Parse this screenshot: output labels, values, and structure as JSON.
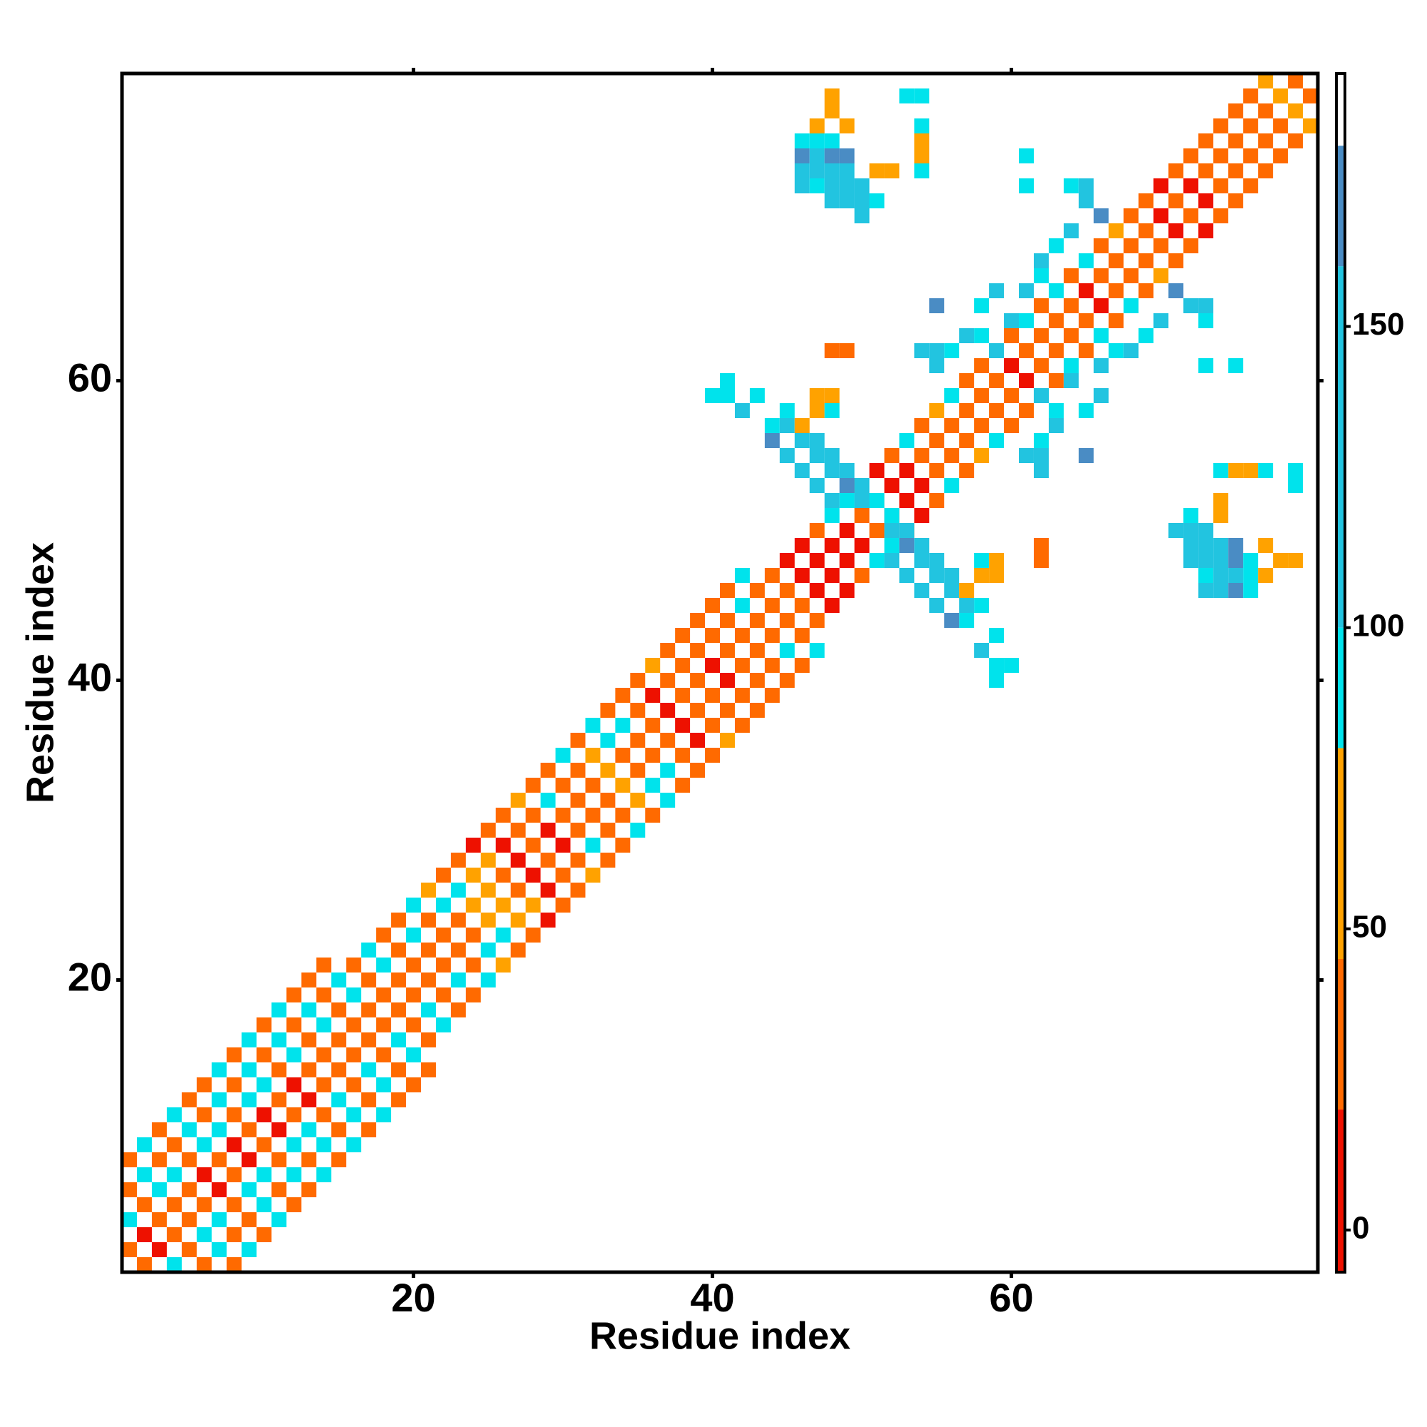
{
  "chart_data": {
    "type": "heatmap",
    "x_label": "Residue index",
    "y_label": "Residue index",
    "xlim": [
      0.5,
      80.5
    ],
    "ylim": [
      0.5,
      80.5
    ],
    "xticks": [
      20,
      40,
      60
    ],
    "yticks": [
      20,
      40,
      60
    ],
    "symmetric": true,
    "colorbar": {
      "lim": [
        -7,
        192
      ],
      "ticks": [
        0,
        50,
        100,
        150
      ],
      "bands": [
        {
          "to": 20,
          "color": "#ee1100"
        },
        {
          "to": 45,
          "color": "#ff6a00"
        },
        {
          "to": 80,
          "color": "#ffa200"
        },
        {
          "to": 100,
          "color": "#00e3ec"
        },
        {
          "to": 160,
          "color": "#22c4e0"
        },
        {
          "to": 180,
          "color": "#4a8cc4"
        }
      ]
    },
    "cells": [
      [
        1,
        2,
        35
      ],
      [
        2,
        3,
        10
      ],
      [
        3,
        4,
        35
      ],
      [
        4,
        5,
        35
      ],
      [
        5,
        6,
        35
      ],
      [
        6,
        7,
        10
      ],
      [
        7,
        8,
        35
      ],
      [
        8,
        9,
        10
      ],
      [
        9,
        10,
        35
      ],
      [
        10,
        11,
        10
      ],
      [
        11,
        12,
        35
      ],
      [
        12,
        13,
        10
      ],
      [
        13,
        14,
        35
      ],
      [
        14,
        15,
        35
      ],
      [
        15,
        16,
        35
      ],
      [
        16,
        17,
        35
      ],
      [
        17,
        18,
        35
      ],
      [
        18,
        19,
        35
      ],
      [
        19,
        20,
        35
      ],
      [
        20,
        21,
        35
      ],
      [
        21,
        22,
        35
      ],
      [
        22,
        23,
        35
      ],
      [
        23,
        24,
        35
      ],
      [
        24,
        25,
        60
      ],
      [
        25,
        26,
        60
      ],
      [
        26,
        27,
        35
      ],
      [
        27,
        28,
        10
      ],
      [
        28,
        29,
        35
      ],
      [
        29,
        30,
        10
      ],
      [
        30,
        31,
        35
      ],
      [
        31,
        32,
        35
      ],
      [
        32,
        33,
        35
      ],
      [
        33,
        34,
        60
      ],
      [
        34,
        35,
        35
      ],
      [
        35,
        36,
        35
      ],
      [
        36,
        37,
        35
      ],
      [
        37,
        38,
        10
      ],
      [
        38,
        39,
        35
      ],
      [
        39,
        40,
        35
      ],
      [
        40,
        41,
        10
      ],
      [
        41,
        42,
        35
      ],
      [
        42,
        43,
        35
      ],
      [
        43,
        44,
        35
      ],
      [
        44,
        45,
        35
      ],
      [
        45,
        46,
        35
      ],
      [
        46,
        47,
        10
      ],
      [
        47,
        48,
        10
      ],
      [
        48,
        49,
        10
      ],
      [
        49,
        50,
        10
      ],
      [
        50,
        51,
        35
      ],
      [
        51,
        52,
        10
      ],
      [
        52,
        53,
        10
      ],
      [
        53,
        54,
        10
      ],
      [
        54,
        55,
        35
      ],
      [
        55,
        56,
        35
      ],
      [
        56,
        57,
        35
      ],
      [
        57,
        58,
        35
      ],
      [
        58,
        59,
        35
      ],
      [
        59,
        60,
        35
      ],
      [
        60,
        61,
        10
      ],
      [
        61,
        62,
        35
      ],
      [
        62,
        63,
        35
      ],
      [
        63,
        64,
        35
      ],
      [
        64,
        65,
        35
      ],
      [
        65,
        66,
        10
      ],
      [
        66,
        67,
        35
      ],
      [
        67,
        68,
        35
      ],
      [
        68,
        69,
        35
      ],
      [
        69,
        70,
        35
      ],
      [
        70,
        71,
        10
      ],
      [
        71,
        72,
        35
      ],
      [
        72,
        73,
        10
      ],
      [
        73,
        74,
        35
      ],
      [
        74,
        75,
        35
      ],
      [
        75,
        76,
        35
      ],
      [
        76,
        77,
        35
      ],
      [
        77,
        78,
        35
      ],
      [
        78,
        79,
        60
      ],
      [
        79,
        80,
        35
      ],
      [
        1,
        4,
        90
      ],
      [
        2,
        5,
        35
      ],
      [
        3,
        6,
        90
      ],
      [
        4,
        7,
        90
      ],
      [
        5,
        8,
        35
      ],
      [
        6,
        9,
        90
      ],
      [
        7,
        10,
        90
      ],
      [
        8,
        11,
        35
      ],
      [
        9,
        12,
        90
      ],
      [
        10,
        13,
        90
      ],
      [
        11,
        14,
        35
      ],
      [
        12,
        15,
        90
      ],
      [
        13,
        16,
        35
      ],
      [
        14,
        17,
        90
      ],
      [
        15,
        18,
        35
      ],
      [
        16,
        19,
        90
      ],
      [
        17,
        20,
        35
      ],
      [
        18,
        21,
        90
      ],
      [
        19,
        22,
        35
      ],
      [
        20,
        23,
        90
      ],
      [
        21,
        24,
        35
      ],
      [
        22,
        25,
        90
      ],
      [
        23,
        26,
        90
      ],
      [
        24,
        27,
        60
      ],
      [
        25,
        28,
        60
      ],
      [
        26,
        29,
        10
      ],
      [
        27,
        30,
        35
      ],
      [
        28,
        31,
        35
      ],
      [
        29,
        32,
        90
      ],
      [
        30,
        33,
        35
      ],
      [
        31,
        34,
        35
      ],
      [
        32,
        35,
        60
      ],
      [
        33,
        36,
        90
      ],
      [
        34,
        37,
        90
      ],
      [
        35,
        38,
        35
      ],
      [
        36,
        39,
        10
      ],
      [
        37,
        40,
        35
      ],
      [
        38,
        41,
        35
      ],
      [
        39,
        42,
        35
      ],
      [
        40,
        43,
        35
      ],
      [
        41,
        44,
        35
      ],
      [
        42,
        45,
        90
      ],
      [
        43,
        46,
        35
      ],
      [
        44,
        47,
        35
      ],
      [
        45,
        48,
        10
      ],
      [
        46,
        49,
        10
      ],
      [
        47,
        50,
        35
      ],
      [
        48,
        51,
        90
      ],
      [
        49,
        52,
        90
      ],
      [
        50,
        53,
        35
      ],
      [
        51,
        54,
        10
      ],
      [
        52,
        55,
        35
      ],
      [
        53,
        56,
        90
      ],
      [
        54,
        57,
        35
      ],
      [
        55,
        58,
        60
      ],
      [
        56,
        59,
        90
      ],
      [
        57,
        60,
        35
      ],
      [
        58,
        61,
        35
      ],
      [
        59,
        62,
        90
      ],
      [
        60,
        63,
        35
      ],
      [
        61,
        64,
        90
      ],
      [
        62,
        65,
        35
      ],
      [
        63,
        66,
        90
      ],
      [
        64,
        67,
        35
      ],
      [
        65,
        68,
        90
      ],
      [
        66,
        69,
        35
      ],
      [
        67,
        70,
        60
      ],
      [
        68,
        71,
        35
      ],
      [
        69,
        72,
        35
      ],
      [
        70,
        73,
        10
      ],
      [
        71,
        74,
        35
      ],
      [
        72,
        75,
        35
      ],
      [
        73,
        76,
        35
      ],
      [
        74,
        77,
        35
      ],
      [
        75,
        78,
        35
      ],
      [
        76,
        79,
        35
      ],
      [
        77,
        80,
        60
      ],
      [
        1,
        6,
        35
      ],
      [
        2,
        7,
        90
      ],
      [
        3,
        8,
        35
      ],
      [
        4,
        9,
        35
      ],
      [
        5,
        10,
        90
      ],
      [
        6,
        11,
        35
      ],
      [
        7,
        12,
        90
      ],
      [
        8,
        13,
        35
      ],
      [
        9,
        14,
        90
      ],
      [
        10,
        15,
        35
      ],
      [
        11,
        16,
        90
      ],
      [
        12,
        17,
        35
      ],
      [
        13,
        18,
        90
      ],
      [
        14,
        19,
        35
      ],
      [
        15,
        20,
        90
      ],
      [
        16,
        21,
        35
      ],
      [
        17,
        22,
        90
      ],
      [
        18,
        23,
        35
      ],
      [
        19,
        24,
        35
      ],
      [
        20,
        25,
        90
      ],
      [
        21,
        26,
        60
      ],
      [
        22,
        27,
        35
      ],
      [
        23,
        28,
        35
      ],
      [
        24,
        29,
        10
      ],
      [
        25,
        30,
        35
      ],
      [
        26,
        31,
        35
      ],
      [
        27,
        32,
        60
      ],
      [
        28,
        33,
        35
      ],
      [
        29,
        34,
        35
      ],
      [
        30,
        35,
        90
      ],
      [
        31,
        36,
        35
      ],
      [
        32,
        37,
        90
      ],
      [
        33,
        38,
        35
      ],
      [
        34,
        39,
        35
      ],
      [
        35,
        40,
        35
      ],
      [
        36,
        41,
        60
      ],
      [
        37,
        42,
        35
      ],
      [
        38,
        43,
        35
      ],
      [
        39,
        44,
        35
      ],
      [
        40,
        45,
        35
      ],
      [
        41,
        46,
        35
      ],
      [
        42,
        47,
        90
      ],
      [
        1,
        8,
        35
      ],
      [
        2,
        9,
        90
      ],
      [
        3,
        10,
        35
      ],
      [
        4,
        11,
        90
      ],
      [
        5,
        12,
        35
      ],
      [
        6,
        13,
        35
      ],
      [
        7,
        14,
        90
      ],
      [
        8,
        15,
        35
      ],
      [
        9,
        16,
        90
      ],
      [
        10,
        17,
        35
      ],
      [
        11,
        18,
        90
      ],
      [
        12,
        19,
        35
      ],
      [
        13,
        20,
        35
      ],
      [
        14,
        21,
        35
      ],
      [
        44,
        57,
        90
      ],
      [
        45,
        57,
        120
      ],
      [
        45,
        58,
        90
      ],
      [
        46,
        56,
        120
      ],
      [
        46,
        57,
        60
      ],
      [
        47,
        55,
        120
      ],
      [
        47,
        56,
        120
      ],
      [
        48,
        54,
        120
      ],
      [
        48,
        55,
        120
      ],
      [
        49,
        53,
        170
      ],
      [
        49,
        54,
        120
      ],
      [
        50,
        52,
        120
      ],
      [
        50,
        53,
        120
      ],
      [
        51,
        52,
        90
      ],
      [
        44,
        56,
        170
      ],
      [
        45,
        55,
        120
      ],
      [
        46,
        54,
        120
      ],
      [
        47,
        53,
        120
      ],
      [
        48,
        52,
        120
      ],
      [
        47,
        59,
        60
      ],
      [
        48,
        59,
        60
      ],
      [
        40,
        59,
        90
      ],
      [
        41,
        59,
        90
      ],
      [
        41,
        60,
        90
      ],
      [
        43,
        59,
        90
      ],
      [
        42,
        58,
        120
      ],
      [
        48,
        62,
        35
      ],
      [
        49,
        62,
        35
      ],
      [
        47,
        58,
        60
      ],
      [
        48,
        58,
        90
      ],
      [
        55,
        61,
        120
      ],
      [
        56,
        62,
        90
      ],
      [
        57,
        63,
        120
      ],
      [
        58,
        63,
        90
      ],
      [
        59,
        62,
        120
      ],
      [
        60,
        64,
        120
      ],
      [
        58,
        65,
        90
      ],
      [
        59,
        66,
        120
      ],
      [
        61,
        66,
        120
      ],
      [
        62,
        67,
        90
      ],
      [
        62,
        68,
        120
      ],
      [
        63,
        69,
        90
      ],
      [
        64,
        70,
        120
      ],
      [
        65,
        72,
        120
      ],
      [
        66,
        71,
        170
      ],
      [
        54,
        62,
        120
      ],
      [
        55,
        62,
        120
      ],
      [
        55,
        65,
        170
      ],
      [
        61,
        73,
        90
      ],
      [
        61,
        75,
        90
      ],
      [
        64,
        73,
        90
      ],
      [
        65,
        73,
        120
      ],
      [
        46,
        73,
        120
      ],
      [
        46,
        74,
        120
      ],
      [
        46,
        75,
        170
      ],
      [
        46,
        76,
        90
      ],
      [
        47,
        73,
        90
      ],
      [
        47,
        74,
        120
      ],
      [
        47,
        75,
        120
      ],
      [
        47,
        76,
        90
      ],
      [
        47,
        77,
        60
      ],
      [
        48,
        72,
        120
      ],
      [
        48,
        73,
        120
      ],
      [
        48,
        74,
        120
      ],
      [
        48,
        75,
        170
      ],
      [
        48,
        76,
        90
      ],
      [
        48,
        78,
        60
      ],
      [
        48,
        79,
        60
      ],
      [
        49,
        72,
        120
      ],
      [
        49,
        73,
        120
      ],
      [
        49,
        74,
        120
      ],
      [
        49,
        75,
        170
      ],
      [
        49,
        77,
        60
      ],
      [
        50,
        71,
        120
      ],
      [
        50,
        72,
        120
      ],
      [
        50,
        73,
        120
      ],
      [
        51,
        72,
        90
      ],
      [
        51,
        74,
        60
      ],
      [
        52,
        74,
        60
      ],
      [
        53,
        79,
        90
      ],
      [
        54,
        75,
        60
      ],
      [
        54,
        76,
        60
      ],
      [
        54,
        77,
        90
      ],
      [
        54,
        79,
        90
      ],
      [
        54,
        74,
        90
      ]
    ]
  }
}
